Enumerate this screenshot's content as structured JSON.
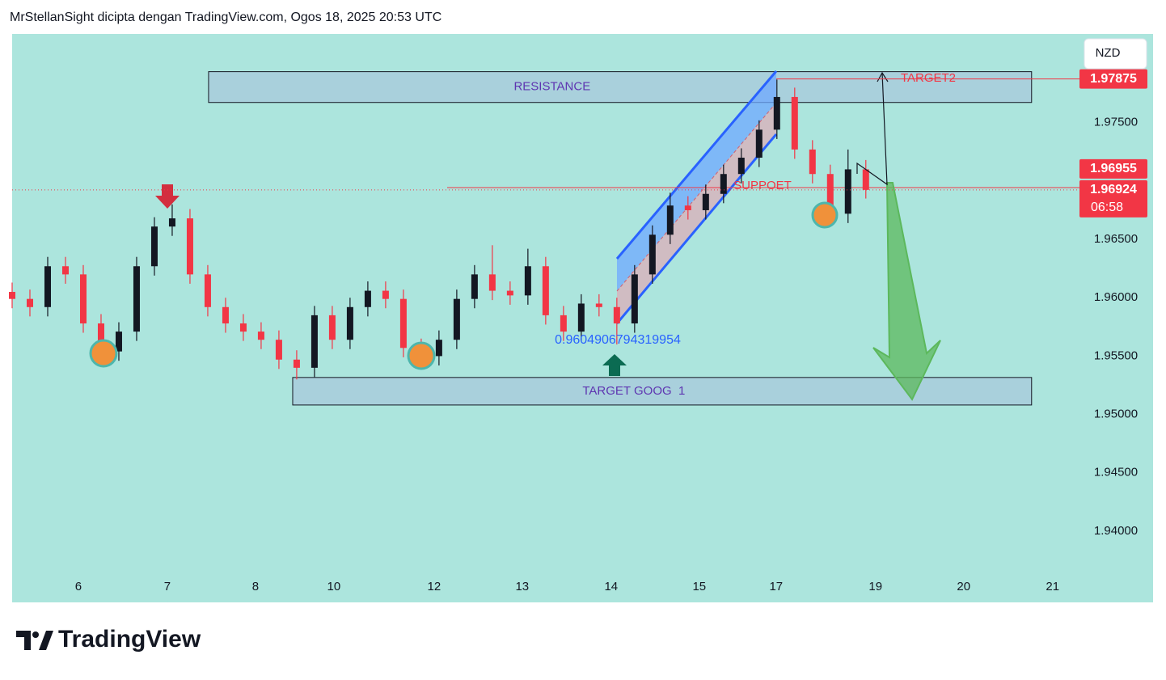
{
  "header": {
    "title": "MrStellanSight dicipta dengan TradingView.com, Ogos 18, 2025 20:53 UTC"
  },
  "chart_data": {
    "type": "candlestick",
    "x": [
      0,
      0.2,
      0.4,
      0.6,
      0.8,
      1,
      1.2,
      1.4,
      1.6,
      1.8,
      2,
      2.2,
      2.4,
      2.6,
      2.8,
      3,
      3.2,
      3.4,
      3.6,
      3.8,
      4,
      4.2,
      4.4,
      4.6,
      4.8,
      5,
      5.2,
      5.4,
      5.6,
      5.8,
      6,
      6.2,
      6.4,
      6.6,
      6.8,
      7,
      7.2,
      7.4,
      7.6,
      7.8,
      8,
      8.2,
      8.4,
      8.6,
      8.8,
      9,
      9.2,
      9.4,
      9.6
    ],
    "open": [
      1.9605,
      1.9599,
      1.9592,
      1.9627,
      1.962,
      1.9578,
      1.9554,
      1.9571,
      1.9627,
      1.9661,
      1.9668,
      1.962,
      1.9592,
      1.9578,
      1.9571,
      1.9564,
      1.9547,
      1.954,
      1.9585,
      1.9564,
      1.9592,
      1.9606,
      1.9599,
      1.9557,
      1.955,
      1.9564,
      1.9599,
      1.962,
      1.9606,
      1.9602,
      1.9627,
      1.9585,
      1.9571,
      1.9595,
      1.9592,
      1.9578,
      1.962,
      1.9654,
      1.9679,
      1.9675,
      1.9689,
      1.9706,
      1.972,
      1.9744,
      1.9772,
      1.9727,
      1.9706,
      1.9672,
      1.971
    ],
    "high": [
      1.9613,
      1.9607,
      1.9635,
      1.9635,
      1.9628,
      1.9586,
      1.9579,
      1.9635,
      1.9669,
      1.968,
      1.9676,
      1.9628,
      1.96,
      1.9586,
      1.9579,
      1.9572,
      1.9555,
      1.9593,
      1.9593,
      1.96,
      1.9614,
      1.9614,
      1.9607,
      1.9565,
      1.9572,
      1.9607,
      1.9628,
      1.9645,
      1.9614,
      1.9642,
      1.9635,
      1.9593,
      1.9603,
      1.9603,
      1.96,
      1.9628,
      1.9662,
      1.969,
      1.9687,
      1.9697,
      1.9714,
      1.9728,
      1.9752,
      1.9787,
      1.978,
      1.9735,
      1.9714,
      1.9727,
      1.9718
    ],
    "low": [
      1.9591,
      1.9584,
      1.9584,
      1.9612,
      1.957,
      1.9546,
      1.9546,
      1.9563,
      1.9619,
      1.9653,
      1.9612,
      1.9584,
      1.957,
      1.9563,
      1.9556,
      1.9539,
      1.953,
      1.9532,
      1.9556,
      1.9556,
      1.9584,
      1.9591,
      1.9549,
      1.9542,
      1.9542,
      1.9556,
      1.9591,
      1.9598,
      1.9594,
      1.9594,
      1.9577,
      1.9563,
      1.9563,
      1.9584,
      1.956,
      1.957,
      1.9612,
      1.9646,
      1.9667,
      1.9667,
      1.9681,
      1.9698,
      1.9712,
      1.9736,
      1.9719,
      1.9698,
      1.9664,
      1.9664,
      1.9685
    ],
    "close": [
      1.9599,
      1.9592,
      1.9627,
      1.962,
      1.9578,
      1.9554,
      1.9571,
      1.9627,
      1.9661,
      1.9668,
      1.962,
      1.9592,
      1.9578,
      1.9571,
      1.9564,
      1.9547,
      1.954,
      1.9585,
      1.9564,
      1.9592,
      1.9606,
      1.9599,
      1.9557,
      1.955,
      1.9564,
      1.9599,
      1.962,
      1.9606,
      1.9602,
      1.9627,
      1.9585,
      1.9571,
      1.9595,
      1.9592,
      1.9578,
      1.962,
      1.9654,
      1.9679,
      1.9675,
      1.9689,
      1.9706,
      1.972,
      1.9744,
      1.9772,
      1.9727,
      1.9706,
      1.9672,
      1.971,
      1.96924
    ],
    "up_color": "#131722",
    "down_color": "#f23645",
    "xlim": [
      0,
      12.83
    ],
    "ylim": [
      1.9339,
      1.9826
    ],
    "xticks": [
      {
        "value": 0.745,
        "label": "6"
      },
      {
        "value": 1.745,
        "label": "7"
      },
      {
        "value": 2.736,
        "label": "8"
      },
      {
        "value": 3.618,
        "label": "10"
      },
      {
        "value": 4.745,
        "label": "12"
      },
      {
        "value": 5.736,
        "label": "13"
      },
      {
        "value": 6.736,
        "label": "14"
      },
      {
        "value": 7.727,
        "label": "15"
      },
      {
        "value": 8.591,
        "label": "17"
      },
      {
        "value": 9.709,
        "label": "19"
      },
      {
        "value": 10.7,
        "label": "20"
      },
      {
        "value": 11.7,
        "label": "21"
      }
    ],
    "yticks": [
      {
        "value": 1.94,
        "label": "1.94000"
      },
      {
        "value": 1.945,
        "label": "1.94500"
      },
      {
        "value": 1.95,
        "label": "1.95000"
      },
      {
        "value": 1.955,
        "label": "1.95500"
      },
      {
        "value": 1.96,
        "label": "1.96000"
      },
      {
        "value": 1.965,
        "label": "1.96500"
      },
      {
        "value": 1.975,
        "label": "1.97500"
      }
    ],
    "currency": "NZD",
    "price_labels": [
      1.97875,
      1.96955,
      1.96924
    ],
    "countdown": "06:58",
    "label_color": "#f23645",
    "zones": [
      {
        "label": "RESISTANCE",
        "x": [
          2.209,
          11.464
        ],
        "y": [
          1.97673,
          1.97937
        ]
      },
      {
        "label": "TARGET GOOG  1",
        "x": [
          3.155,
          11.464
        ],
        "y": [
          1.95081,
          1.95317
        ]
      }
    ],
    "labels": [
      "TARGET2",
      "SUPPOET",
      "0.9604906794319954"
    ]
  },
  "footer": {
    "brand": "TradingView"
  }
}
